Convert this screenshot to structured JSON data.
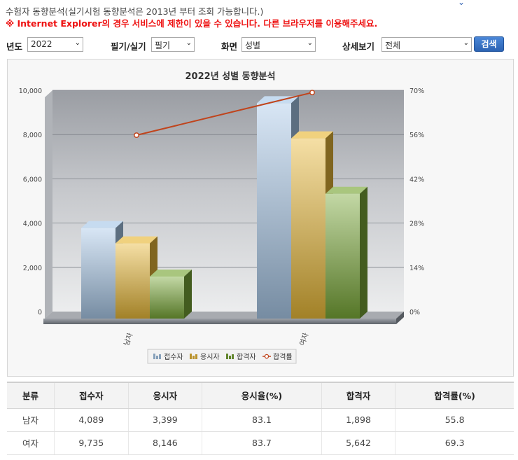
{
  "notice": {
    "line1": "수험자 동향분석(실기시험 동향분석은 2013년 부터 조회 가능합니다.)",
    "line2": "※ Internet Explorer의 경우 서비스에 제한이 있을 수 있습니다. 다른 브라우저를 이용해주세요."
  },
  "filters": {
    "year": {
      "label": "년도",
      "value": "2022"
    },
    "exam_type": {
      "label": "필기/실기",
      "value": "필기"
    },
    "screen": {
      "label": "화면",
      "value": "성별"
    },
    "detail": {
      "label": "상세보기",
      "value": "전체"
    },
    "search_label": "검색"
  },
  "chart_data": {
    "type": "bar",
    "title": "2022년 성별 동향분석",
    "categories": [
      "남자",
      "여자"
    ],
    "series": [
      {
        "name": "접수자",
        "type": "bar",
        "values": [
          4089,
          9735
        ],
        "color": "#a8c8e8"
      },
      {
        "name": "응시자",
        "type": "bar",
        "values": [
          3399,
          8146
        ],
        "color": "#e8b838"
      },
      {
        "name": "합격자",
        "type": "bar",
        "values": [
          1898,
          5642
        ],
        "color": "#7aa838"
      },
      {
        "name": "합격률",
        "type": "line",
        "axis": "right",
        "values": [
          55.8,
          69.3
        ],
        "color": "#c0441c"
      }
    ],
    "ylim": [
      0,
      10000
    ],
    "yticks": [
      "0",
      "2,000",
      "4,000",
      "6,000",
      "8,000",
      "10,000"
    ],
    "y2lim": [
      0,
      70
    ],
    "y2ticks": [
      "0%",
      "14%",
      "28%",
      "42%",
      "56%",
      "70%"
    ],
    "grid": true,
    "legend": "bottom"
  },
  "table": {
    "headers": [
      "분류",
      "접수자",
      "응시자",
      "응시율(%)",
      "합격자",
      "합격률(%)"
    ],
    "rows": [
      [
        "남자",
        "4,089",
        "3,399",
        "83.1",
        "1,898",
        "55.8"
      ],
      [
        "여자",
        "9,735",
        "8,146",
        "83.7",
        "5,642",
        "69.3"
      ]
    ]
  }
}
